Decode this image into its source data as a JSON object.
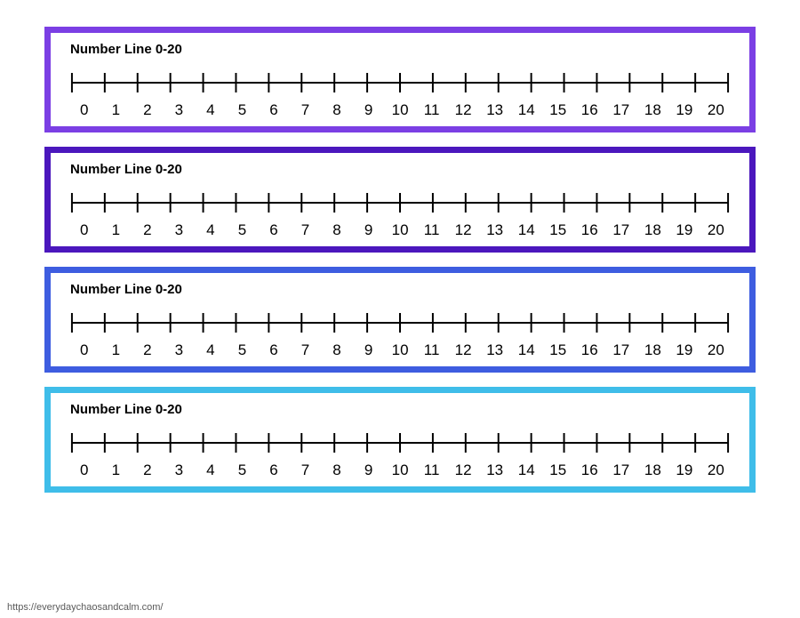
{
  "page_background": "#ffffff",
  "source_url": "https://everydaychaosandcalm.com/",
  "cards": [
    {
      "title": "Number Line 0-20",
      "border_color": "#7b3fe4",
      "border_width": 7,
      "title_fontsize": 15,
      "label_fontsize": 17,
      "line_color": "#000000",
      "line_width": 2,
      "tick_height": 22,
      "range_min": 0,
      "range_max": 20,
      "labels": [
        "0",
        "1",
        "2",
        "3",
        "4",
        "5",
        "6",
        "7",
        "8",
        "9",
        "10",
        "11",
        "12",
        "13",
        "14",
        "15",
        "16",
        "17",
        "18",
        "19",
        "20"
      ]
    },
    {
      "title": "Number Line 0-20",
      "border_color": "#4b17bd",
      "border_width": 7,
      "title_fontsize": 15,
      "label_fontsize": 17,
      "line_color": "#000000",
      "line_width": 2,
      "tick_height": 22,
      "range_min": 0,
      "range_max": 20,
      "labels": [
        "0",
        "1",
        "2",
        "3",
        "4",
        "5",
        "6",
        "7",
        "8",
        "9",
        "10",
        "11",
        "12",
        "13",
        "14",
        "15",
        "16",
        "17",
        "18",
        "19",
        "20"
      ]
    },
    {
      "title": "Number Line 0-20",
      "border_color": "#3e5de0",
      "border_width": 7,
      "title_fontsize": 15,
      "label_fontsize": 17,
      "line_color": "#000000",
      "line_width": 2,
      "tick_height": 22,
      "range_min": 0,
      "range_max": 20,
      "labels": [
        "0",
        "1",
        "2",
        "3",
        "4",
        "5",
        "6",
        "7",
        "8",
        "9",
        "10",
        "11",
        "12",
        "13",
        "14",
        "15",
        "16",
        "17",
        "18",
        "19",
        "20"
      ]
    },
    {
      "title": "Number Line 0-20",
      "border_color": "#3fbde9",
      "border_width": 7,
      "title_fontsize": 15,
      "label_fontsize": 17,
      "line_color": "#000000",
      "line_width": 2,
      "tick_height": 22,
      "range_min": 0,
      "range_max": 20,
      "labels": [
        "0",
        "1",
        "2",
        "3",
        "4",
        "5",
        "6",
        "7",
        "8",
        "9",
        "10",
        "11",
        "12",
        "13",
        "14",
        "15",
        "16",
        "17",
        "18",
        "19",
        "20"
      ]
    }
  ]
}
